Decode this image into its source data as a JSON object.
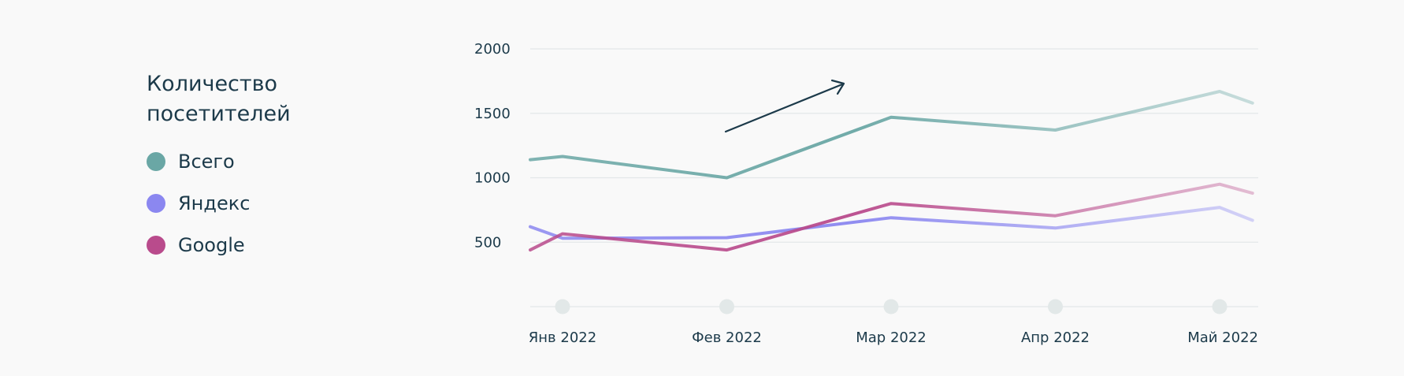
{
  "legend": {
    "title": "Количество посетителей",
    "items": [
      {
        "label": "Всего",
        "color": "#6aa7a5"
      },
      {
        "label": "Яндекс",
        "color": "#8b87f0"
      },
      {
        "label": "Google",
        "color": "#b94b8c"
      }
    ]
  },
  "chart_data": {
    "type": "line",
    "categories": [
      "Янв 2022",
      "Фев 2022",
      "Мар 2022",
      "Апр 2022",
      "Май 2022"
    ],
    "yticks": [
      2000,
      1500,
      1000,
      500
    ],
    "ylim": [
      0,
      2000
    ],
    "grid": true,
    "legend_position": "left",
    "annotation": "upward-trend-arrow",
    "series": [
      {
        "name": "Всего",
        "color": "#6aa7a5",
        "x": [
          -0.2,
          0,
          1,
          2,
          3,
          4,
          4.2
        ],
        "values": [
          1140,
          1165,
          1000,
          1470,
          1370,
          1670,
          1580
        ]
      },
      {
        "name": "Яндекс",
        "color": "#8b87f0",
        "x": [
          -0.2,
          0,
          1,
          2,
          3,
          4,
          4.2
        ],
        "values": [
          620,
          530,
          535,
          690,
          610,
          770,
          670
        ]
      },
      {
        "name": "Google",
        "color": "#b94b8c",
        "x": [
          -0.2,
          0,
          1,
          2,
          3,
          4,
          4.2
        ],
        "values": [
          440,
          565,
          440,
          800,
          705,
          950,
          880
        ]
      }
    ]
  }
}
